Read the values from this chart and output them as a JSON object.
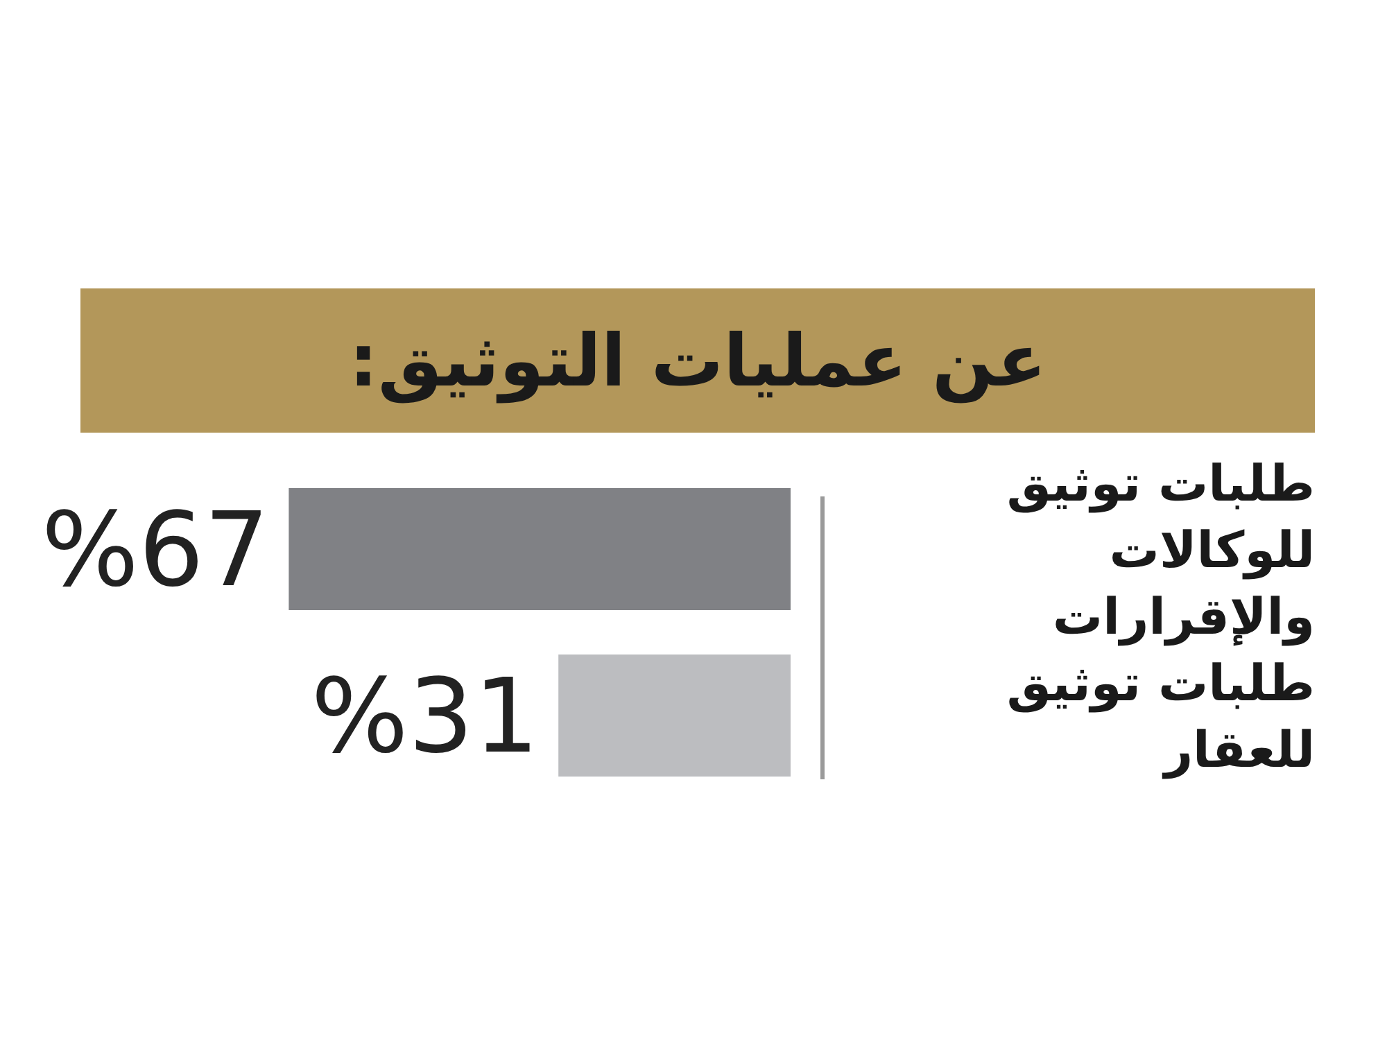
{
  "chart_data": {
    "type": "bar",
    "orientation": "horizontal",
    "title": "عن عمليات التوثيق:",
    "categories": [
      "طلبات توثيق للوكالات والإقرارات",
      "طلبات توثيق للعقار"
    ],
    "values": [
      67,
      31
    ],
    "colors": [
      "#808185",
      "#bcbdc0"
    ],
    "value_labels": [
      "%67",
      "%31"
    ]
  }
}
